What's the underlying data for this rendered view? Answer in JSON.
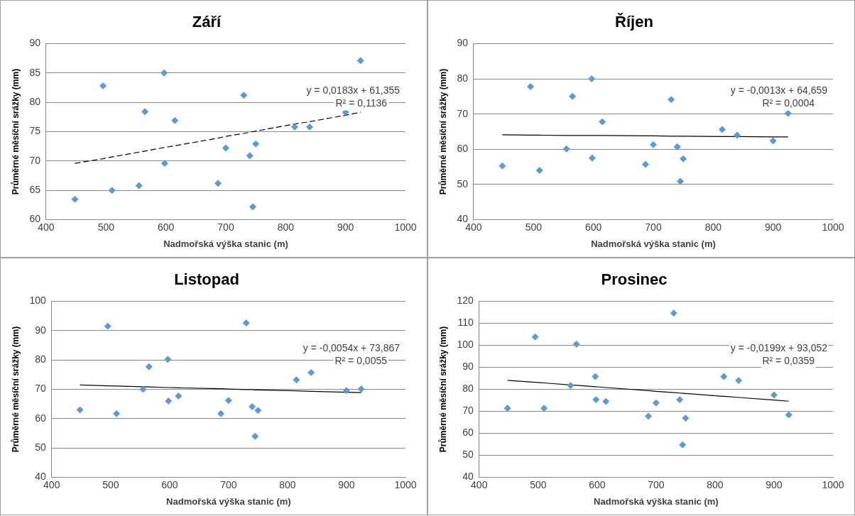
{
  "chart_data": [
    {
      "type": "scatter",
      "title": "Září",
      "xlabel": "Nadmořská výška stanic (m)",
      "ylabel": "Průměrné měsíční srážky (mm)",
      "x": [
        448,
        495,
        510,
        555,
        565,
        597,
        598,
        615,
        687,
        700,
        730,
        740,
        745,
        750,
        815,
        840,
        900,
        925
      ],
      "series": [
        {
          "color": "#5b9bd5",
          "marker": "diamond",
          "values": [
            63.5,
            82.8,
            65,
            65.8,
            78.4,
            85,
            69.6,
            76.9,
            66.2,
            72.2,
            81.2,
            70.9,
            62.2,
            72.9,
            75.8,
            75.8,
            78.3,
            87.1
          ]
        },
        {
          "type": "line",
          "color": "#000000",
          "marker": "none",
          "line_style": "dashed",
          "values": [
            69.6,
            70.4,
            70.7,
            71.5,
            71.7,
            72.3,
            72.3,
            72.6,
            73.9,
            74.2,
            74.7,
            74.9,
            75.0,
            75.1,
            76.3,
            76.7,
            77.8,
            78.3
          ]
        }
      ],
      "xlim": [
        400,
        1000
      ],
      "xticks": [
        400,
        500,
        600,
        700,
        800,
        900,
        1000
      ],
      "ylim": [
        60,
        90
      ],
      "yticks": [
        60,
        65,
        70,
        75,
        80,
        85,
        90
      ],
      "grid": "y",
      "legend": false,
      "annotations": [
        "y = 0,0183x + 61,355",
        "R² = 0,1136"
      ]
    },
    {
      "type": "scatter",
      "title": "Říjen",
      "xlabel": "Nadmořská výška stanic (m)",
      "ylabel": "Průměrné měsíční srážky (mm)",
      "x": [
        448,
        495,
        510,
        555,
        565,
        597,
        598,
        615,
        687,
        700,
        730,
        740,
        745,
        750,
        815,
        840,
        900,
        925
      ],
      "series": [
        {
          "color": "#5b9bd5",
          "marker": "diamond",
          "values": [
            55.3,
            77.8,
            54,
            60.1,
            75,
            80,
            57.5,
            67.8,
            55.7,
            61.3,
            74.1,
            60.7,
            50.9,
            57.3,
            65.6,
            64,
            62.4,
            70.2
          ]
        },
        {
          "type": "line",
          "color": "#000000",
          "marker": "none",
          "line_style": "solid",
          "values": [
            64.1,
            64.0,
            64.0,
            63.9,
            63.9,
            63.9,
            63.9,
            63.9,
            63.8,
            63.8,
            63.7,
            63.7,
            63.7,
            63.7,
            63.6,
            63.6,
            63.5,
            63.5
          ]
        }
      ],
      "xlim": [
        400,
        1000
      ],
      "xticks": [
        400,
        500,
        600,
        700,
        800,
        900,
        1000
      ],
      "ylim": [
        40,
        90
      ],
      "yticks": [
        40,
        50,
        60,
        70,
        80,
        90
      ],
      "grid": "y",
      "legend": false,
      "annotations": [
        "y = -0,0013x + 64,659",
        "R² = 0,0004"
      ]
    },
    {
      "type": "scatter",
      "title": "Listopad",
      "xlabel": "Nadmořská výška stanic (m)",
      "ylabel": "Průměrné měsíční srážky (mm)",
      "x": [
        448,
        495,
        510,
        555,
        565,
        597,
        598,
        615,
        687,
        700,
        730,
        740,
        745,
        750,
        815,
        840,
        900,
        925
      ],
      "series": [
        {
          "color": "#5b9bd5",
          "marker": "diamond",
          "values": [
            63,
            91.5,
            61.7,
            70,
            77.7,
            80.2,
            66,
            67.7,
            61.7,
            66.2,
            92.6,
            64.1,
            54,
            62.8,
            73.2,
            75.7,
            69.6,
            70.1
          ]
        },
        {
          "type": "line",
          "color": "#000000",
          "marker": "none",
          "line_style": "solid",
          "values": [
            71.5,
            71.2,
            71.1,
            70.9,
            70.8,
            70.6,
            70.6,
            70.5,
            70.2,
            70.1,
            69.9,
            69.9,
            69.8,
            69.8,
            69.5,
            69.3,
            69.0,
            68.9
          ]
        }
      ],
      "xlim": [
        400,
        1000
      ],
      "xticks": [
        400,
        500,
        600,
        700,
        800,
        900,
        1000
      ],
      "ylim": [
        40,
        100
      ],
      "yticks": [
        40,
        50,
        60,
        70,
        80,
        90,
        100
      ],
      "grid": "y",
      "legend": false,
      "annotations": [
        "y = -0,0054x + 73,867",
        "R² = 0,0055"
      ]
    },
    {
      "type": "scatter",
      "title": "Prosinec",
      "xlabel": "Nadmořská výška stanic (m)",
      "ylabel": "Průměrné měsíční srážky (mm)",
      "x": [
        448,
        495,
        510,
        555,
        565,
        597,
        598,
        615,
        687,
        700,
        730,
        740,
        745,
        750,
        815,
        840,
        900,
        925
      ],
      "series": [
        {
          "color": "#5b9bd5",
          "marker": "diamond",
          "values": [
            71.4,
            103.8,
            71.4,
            81.7,
            100.5,
            85.8,
            75.3,
            74.5,
            67.8,
            73.8,
            114.6,
            75.3,
            54.8,
            66.9,
            85.8,
            84,
            77.4,
            68.4
          ]
        },
        {
          "type": "line",
          "color": "#000000",
          "marker": "none",
          "line_style": "solid",
          "values": [
            84.1,
            83.2,
            82.9,
            82.0,
            81.8,
            81.2,
            81.2,
            80.8,
            79.4,
            79.1,
            78.5,
            78.3,
            78.2,
            78.1,
            76.8,
            76.3,
            75.1,
            74.6
          ]
        }
      ],
      "xlim": [
        400,
        1000
      ],
      "xticks": [
        400,
        500,
        600,
        700,
        800,
        900,
        1000
      ],
      "ylim": [
        40,
        120
      ],
      "yticks": [
        40,
        50,
        60,
        70,
        80,
        90,
        100,
        110,
        120
      ],
      "grid": "y",
      "legend": false,
      "annotations": [
        "y = -0,0199x + 93,052",
        "R² = 0,0359"
      ]
    }
  ]
}
